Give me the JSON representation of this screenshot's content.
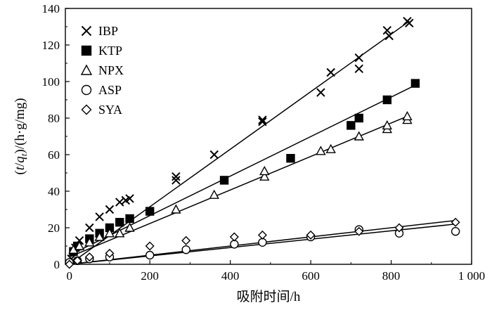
{
  "chart_data": {
    "type": "scatter",
    "xlabel": "吸附时间/h",
    "ylabel_parts": [
      "(",
      "t",
      "/",
      "q",
      "t",
      ")/(h·g/mg)"
    ],
    "xlim": [
      -10,
      1000
    ],
    "ylim": [
      0,
      140
    ],
    "x_ticks": [
      0,
      200,
      400,
      600,
      800,
      1000
    ],
    "x_tick_labels": [
      "0",
      "200",
      "400",
      "600",
      "800",
      "1 000"
    ],
    "y_ticks": [
      0,
      20,
      40,
      60,
      80,
      100,
      120,
      140
    ],
    "y_tick_labels": [
      "0",
      "20",
      "40",
      "60",
      "80",
      "100",
      "120",
      "140"
    ],
    "legend_position": "top-left",
    "series": [
      {
        "name": "IBP",
        "marker": "x",
        "points": [
          [
            5,
            3
          ],
          [
            15,
            9
          ],
          [
            25,
            13
          ],
          [
            50,
            20
          ],
          [
            75,
            26
          ],
          [
            100,
            30
          ],
          [
            125,
            34
          ],
          [
            140,
            35
          ],
          [
            150,
            36
          ],
          [
            265,
            48
          ],
          [
            265,
            46
          ],
          [
            360,
            60
          ],
          [
            480,
            78
          ],
          [
            480,
            79
          ],
          [
            625,
            94
          ],
          [
            650,
            105
          ],
          [
            720,
            113
          ],
          [
            720,
            107
          ],
          [
            790,
            128
          ],
          [
            795,
            125
          ],
          [
            840,
            133
          ],
          [
            845,
            132
          ]
        ],
        "fit": [
          [
            0,
            0
          ],
          [
            845,
            133
          ]
        ]
      },
      {
        "name": "KTP",
        "marker": "square",
        "points": [
          [
            10,
            7
          ],
          [
            20,
            10
          ],
          [
            50,
            14
          ],
          [
            75,
            17
          ],
          [
            100,
            20
          ],
          [
            125,
            23
          ],
          [
            150,
            25
          ],
          [
            200,
            29
          ],
          [
            385,
            46
          ],
          [
            550,
            58
          ],
          [
            700,
            76
          ],
          [
            720,
            80
          ],
          [
            790,
            90
          ],
          [
            860,
            99
          ]
        ],
        "fit": [
          [
            0,
            5
          ],
          [
            860,
            98
          ]
        ]
      },
      {
        "name": "NPX",
        "marker": "triangle",
        "points": [
          [
            10,
            8
          ],
          [
            25,
            10
          ],
          [
            50,
            12
          ],
          [
            75,
            15
          ],
          [
            100,
            17
          ],
          [
            125,
            17
          ],
          [
            150,
            20
          ],
          [
            265,
            30
          ],
          [
            360,
            38
          ],
          [
            485,
            48
          ],
          [
            485,
            51
          ],
          [
            625,
            62
          ],
          [
            650,
            63
          ],
          [
            720,
            70
          ],
          [
            790,
            74
          ],
          [
            790,
            76
          ],
          [
            840,
            79
          ],
          [
            840,
            81
          ]
        ],
        "fit": [
          [
            0,
            4
          ],
          [
            840,
            81
          ]
        ]
      },
      {
        "name": "ASP",
        "marker": "circle",
        "points": [
          [
            0,
            1
          ],
          [
            20,
            2
          ],
          [
            50,
            3
          ],
          [
            100,
            4
          ],
          [
            200,
            5
          ],
          [
            290,
            8
          ],
          [
            410,
            11
          ],
          [
            480,
            12
          ],
          [
            600,
            15
          ],
          [
            720,
            19
          ],
          [
            820,
            17
          ],
          [
            960,
            18
          ]
        ],
        "fit": [
          [
            0,
            0
          ],
          [
            960,
            22
          ]
        ]
      },
      {
        "name": "SYA",
        "marker": "diamond",
        "points": [
          [
            0,
            0
          ],
          [
            20,
            2
          ],
          [
            50,
            4
          ],
          [
            100,
            6
          ],
          [
            200,
            10
          ],
          [
            290,
            13
          ],
          [
            410,
            15
          ],
          [
            480,
            16
          ],
          [
            600,
            16
          ],
          [
            720,
            18
          ],
          [
            820,
            20
          ],
          [
            960,
            23
          ]
        ],
        "fit": [
          [
            0,
            0
          ],
          [
            960,
            24
          ]
        ]
      }
    ]
  }
}
